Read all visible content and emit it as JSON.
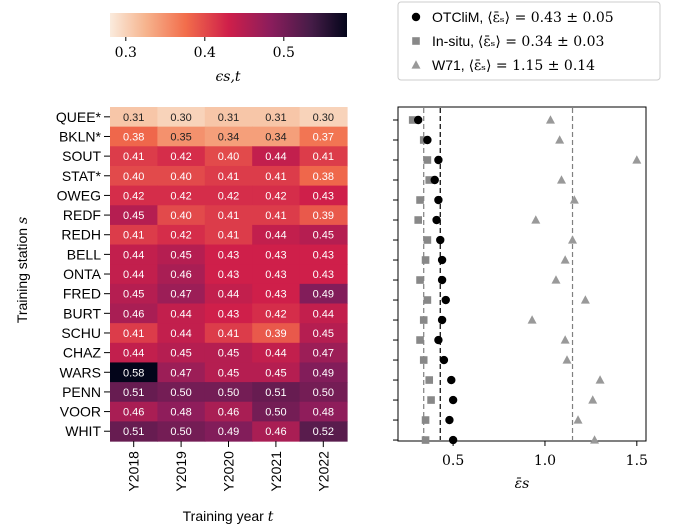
{
  "chart_data": [
    {
      "type": "heatmap",
      "xlabel": "Training year t",
      "ylabel": "Training station s",
      "categories_x": [
        "Y2018",
        "Y2019",
        "Y2020",
        "Y2021",
        "Y2022"
      ],
      "categories_y": [
        "QUEE*",
        "BKLN*",
        "SOUT",
        "STAT*",
        "OWEG",
        "REDF",
        "REDH",
        "BELL",
        "ONTA",
        "FRED",
        "BURT",
        "SCHU",
        "CHAZ",
        "WARS",
        "PENN",
        "VOOR",
        "WHIT"
      ],
      "values": [
        [
          0.31,
          0.3,
          0.31,
          0.31,
          0.3
        ],
        [
          0.38,
          0.35,
          0.34,
          0.34,
          0.37
        ],
        [
          0.41,
          0.42,
          0.4,
          0.44,
          0.41
        ],
        [
          0.4,
          0.4,
          0.41,
          0.41,
          0.38
        ],
        [
          0.42,
          0.42,
          0.42,
          0.42,
          0.43
        ],
        [
          0.45,
          0.4,
          0.41,
          0.41,
          0.39
        ],
        [
          0.41,
          0.42,
          0.41,
          0.44,
          0.45
        ],
        [
          0.44,
          0.45,
          0.43,
          0.43,
          0.43
        ],
        [
          0.44,
          0.46,
          0.43,
          0.43,
          0.43
        ],
        [
          0.45,
          0.47,
          0.44,
          0.43,
          0.49
        ],
        [
          0.46,
          0.44,
          0.43,
          0.42,
          0.44
        ],
        [
          0.41,
          0.44,
          0.41,
          0.39,
          0.45
        ],
        [
          0.44,
          0.45,
          0.45,
          0.44,
          0.47
        ],
        [
          0.58,
          0.47,
          0.45,
          0.45,
          0.49
        ],
        [
          0.51,
          0.5,
          0.5,
          0.51,
          0.5
        ],
        [
          0.46,
          0.48,
          0.46,
          0.5,
          0.48
        ],
        [
          0.51,
          0.5,
          0.49,
          0.46,
          0.52
        ]
      ],
      "colorbar": {
        "label": "ε_{s,t}",
        "range": [
          0.28,
          0.58
        ],
        "ticks": [
          "0.3",
          "0.4",
          "0.5"
        ]
      },
      "colormap": "rocket_r"
    },
    {
      "type": "scatter",
      "xlabel": "ε̄_s",
      "xlim": [
        0.2,
        1.55
      ],
      "xticks": [
        "0.5",
        "1.0",
        "1.5"
      ],
      "stations": [
        "QUEE*",
        "BKLN*",
        "SOUT",
        "STAT*",
        "OWEG",
        "REDF",
        "REDH",
        "BELL",
        "ONTA",
        "FRED",
        "BURT",
        "SCHU",
        "CHAZ",
        "WARS",
        "PENN",
        "VOOR",
        "WHIT"
      ],
      "series": [
        {
          "name": "OTCliM, ⟨ε̄_s⟩ = 0.43 ± 0.05",
          "name_main": "OTCliM, ",
          "name_math": "⟨ε̄ₛ⟩ = 0.43 ± 0.05",
          "marker": "circle",
          "color": "#000000",
          "mean": 0.43,
          "values": [
            0.31,
            0.36,
            0.42,
            0.4,
            0.42,
            0.41,
            0.43,
            0.44,
            0.44,
            0.46,
            0.44,
            0.42,
            0.45,
            0.49,
            0.5,
            0.48,
            0.5
          ]
        },
        {
          "name": "In-situ, ⟨ε̄_s⟩ = 0.34 ± 0.03",
          "name_main": "In-situ, ",
          "name_math": "⟨ε̄ₛ⟩ = 0.34 ± 0.03",
          "marker": "square",
          "color": "#888888",
          "mean": 0.34,
          "values": [
            0.28,
            0.34,
            0.36,
            0.37,
            0.32,
            0.31,
            0.36,
            0.35,
            0.32,
            0.36,
            0.34,
            0.32,
            0.34,
            0.37,
            0.38,
            0.35,
            0.35
          ]
        },
        {
          "name": "W71, ⟨ε̄_s⟩ = 1.15 ± 0.14",
          "name_main": "W71, ",
          "name_math": "⟨ε̄ₛ⟩ = 1.15 ± 0.14",
          "marker": "triangle",
          "color": "#999999",
          "mean": 1.15,
          "values": [
            1.03,
            1.08,
            1.5,
            1.09,
            1.16,
            0.95,
            1.15,
            1.11,
            1.06,
            1.22,
            0.93,
            1.11,
            1.12,
            1.3,
            1.26,
            1.18,
            1.27
          ]
        }
      ]
    }
  ],
  "labels": {
    "xlabel_main": "Training year ",
    "xlabel_var": "t",
    "ylabel_main": "Training station ",
    "ylabel_var": "s",
    "colorbar_label": "ϵs,t",
    "scatter_xlabel": "ε̄s"
  }
}
